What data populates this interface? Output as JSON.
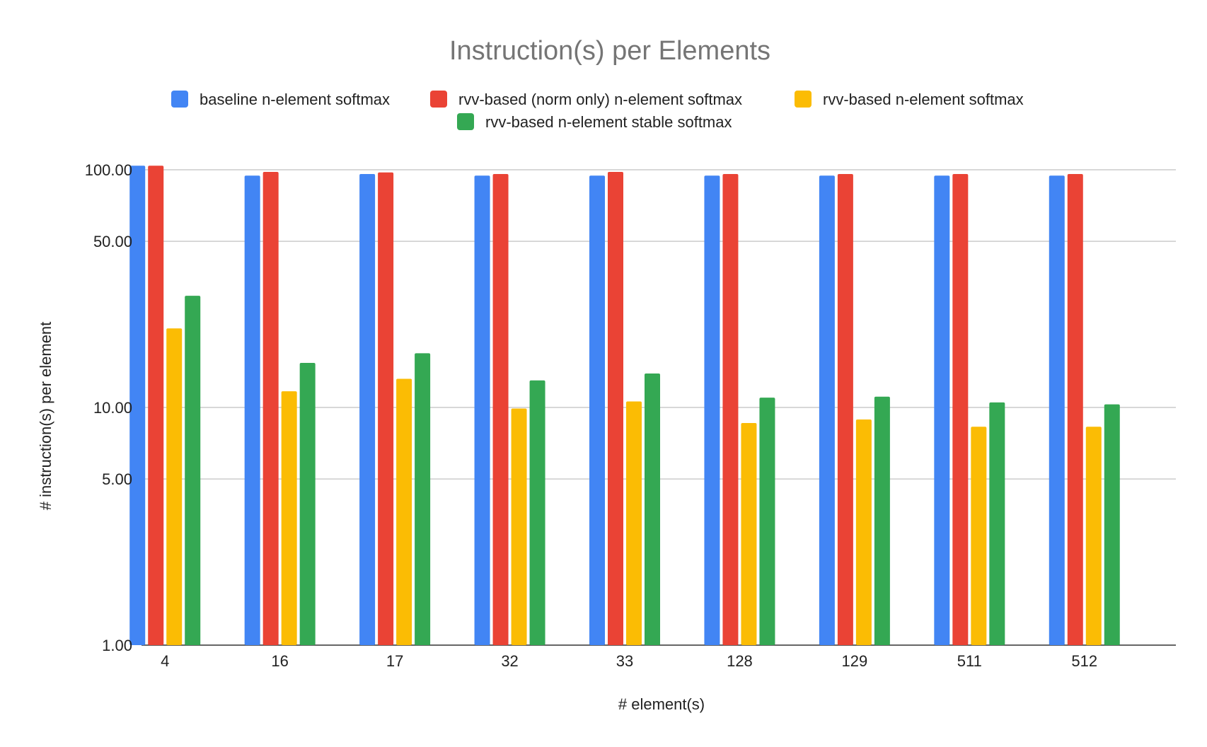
{
  "chart_data": {
    "type": "bar",
    "title": "Instruction(s) per Elements",
    "xlabel": "# element(s)",
    "ylabel": "# instruction(s) per element",
    "yscale": "log",
    "ylim": [
      1,
      100
    ],
    "yticks": [
      1,
      5,
      10,
      50,
      100
    ],
    "ytick_labels": [
      "1.00",
      "5.00",
      "10.00",
      "50.00",
      "100.00"
    ],
    "grid": true,
    "legend_position": "top",
    "categories": [
      "4",
      "16",
      "17",
      "32",
      "33",
      "128",
      "129",
      "511",
      "512"
    ],
    "series": [
      {
        "name": "baseline n-element softmax",
        "color": "#4285F4",
        "values": [
          104,
          94.5,
          96,
          94.5,
          94.5,
          94.5,
          94.5,
          94.5,
          94.5
        ]
      },
      {
        "name": "rvv-based (norm only) n-element softmax",
        "color": "#EA4335",
        "values": [
          104,
          98,
          97.5,
          96,
          98,
          96,
          96,
          96,
          96
        ]
      },
      {
        "name": "rvv-based n-element softmax",
        "color": "#FBBC04",
        "values": [
          21.5,
          11.7,
          13.2,
          9.9,
          10.6,
          8.6,
          8.9,
          8.3,
          8.3
        ]
      },
      {
        "name": "rvv-based n-element stable softmax",
        "color": "#34A853",
        "values": [
          29.5,
          15.4,
          16.9,
          13.0,
          13.9,
          11.0,
          11.1,
          10.5,
          10.3
        ]
      }
    ]
  }
}
